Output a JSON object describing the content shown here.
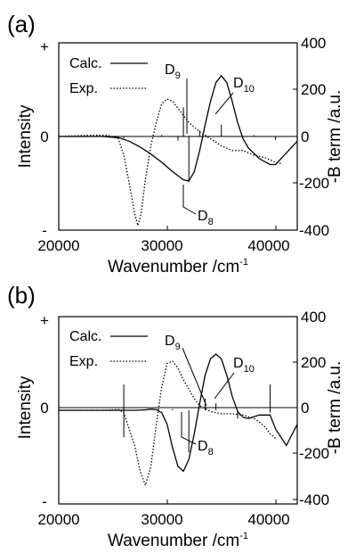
{
  "chart_data": [
    {
      "type": "line",
      "panel_label": "(a)",
      "xlabel": "Wavenumber /cm",
      "xlabel_sup": "-1",
      "ylabel_left": "Intensity",
      "ylabel_right": "-B term /a.u.",
      "left_ticks": [
        "+",
        "0",
        "-"
      ],
      "xlim": [
        20000,
        42000
      ],
      "x_ticks": [
        20000,
        30000,
        40000
      ],
      "right_ylim": [
        -400,
        400
      ],
      "right_ticks": [
        400,
        200,
        0,
        -200,
        -400
      ],
      "legend_position": "top-left",
      "series": [
        {
          "name": "Calc.",
          "style": "solid",
          "x": [
            20000,
            24000,
            25500,
            26500,
            27500,
            28500,
            29500,
            30500,
            31500,
            32000,
            32500,
            33000,
            33500,
            34000,
            34500,
            35000,
            35500,
            36000,
            36500,
            37000,
            37500,
            38500,
            39500,
            40000,
            41000,
            42000
          ],
          "y": [
            0,
            0,
            -5,
            -20,
            -45,
            -75,
            -110,
            -150,
            -185,
            -190,
            -150,
            -60,
            50,
            150,
            230,
            260,
            230,
            150,
            60,
            -10,
            -50,
            -95,
            -120,
            -120,
            -70,
            -20
          ]
        },
        {
          "name": "Exp.",
          "style": "dotted",
          "x": [
            20000,
            23000,
            24500,
            25500,
            26000,
            26500,
            27000,
            27300,
            27600,
            28000,
            28500,
            29000,
            29500,
            30000,
            30500,
            31000,
            31500,
            32000,
            33000,
            34000,
            35000,
            36000,
            37000,
            38000,
            39000,
            40000,
            40500
          ],
          "y": [
            0,
            5,
            5,
            -10,
            -80,
            -200,
            -330,
            -380,
            -330,
            -180,
            -40,
            60,
            140,
            160,
            150,
            120,
            90,
            60,
            20,
            -10,
            -40,
            -60,
            -60,
            -80,
            -90,
            -110,
            -115
          ]
        }
      ],
      "sticks": [
        {
          "x": 26000,
          "y": -8
        },
        {
          "x": 29500,
          "y": 6
        },
        {
          "x": 31000,
          "y": -18
        },
        {
          "x": 31500,
          "y": 125
        },
        {
          "x": 32000,
          "y": -195
        },
        {
          "x": 33000,
          "y": 25
        },
        {
          "x": 35000,
          "y": 50
        },
        {
          "x": 38000,
          "y": 6
        },
        {
          "x": 40000,
          "y": -15
        }
      ],
      "annotations": [
        {
          "label": "D",
          "sub": "9"
        },
        {
          "label": "D",
          "sub": "10"
        },
        {
          "label": "D",
          "sub": "8"
        }
      ]
    },
    {
      "type": "line",
      "panel_label": "(b)",
      "xlabel": "Wavenumber /cm",
      "xlabel_sup": "-1",
      "ylabel_left": "Intensity",
      "ylabel_right": "-B term /a.u.",
      "left_ticks": [
        "+",
        "0",
        "-"
      ],
      "xlim": [
        20000,
        42000
      ],
      "x_ticks": [
        20000,
        30000,
        40000
      ],
      "right_ylim": [
        -400,
        400
      ],
      "right_ticks": [
        400,
        200,
        0,
        -200,
        -400
      ],
      "legend_position": "top-left",
      "series": [
        {
          "name": "Calc.",
          "style": "solid",
          "x": [
            20000,
            24000,
            26000,
            27000,
            28000,
            28500,
            29000,
            29500,
            30000,
            30500,
            31000,
            31500,
            32000,
            32500,
            33000,
            33500,
            34000,
            34500,
            35000,
            35500,
            36000,
            36500,
            37000,
            37500,
            38500,
            39500,
            40000,
            41000,
            42000
          ],
          "y": [
            0,
            0,
            0,
            0,
            2,
            5,
            3,
            -10,
            -60,
            -160,
            -240,
            -260,
            -210,
            -100,
            30,
            150,
            220,
            240,
            220,
            150,
            60,
            -5,
            -30,
            -35,
            -20,
            -20,
            -80,
            -150,
            -60
          ]
        },
        {
          "name": "Exp.",
          "style": "dotted",
          "x": [
            20000,
            24000,
            25500,
            26000,
            26500,
            27000,
            27500,
            28000,
            28500,
            29000,
            29500,
            30000,
            30500,
            31000,
            31500,
            32000,
            32500,
            33000,
            34000,
            35000,
            36000,
            37000,
            38000,
            38500,
            39000,
            39500,
            40000
          ],
          "y": [
            0,
            0,
            3,
            -10,
            -80,
            -150,
            -260,
            -320,
            -240,
            -60,
            100,
            200,
            210,
            180,
            130,
            90,
            50,
            20,
            -5,
            -15,
            -15,
            -20,
            -35,
            -50,
            -70,
            -100,
            -120
          ]
        }
      ],
      "sticks": [
        {
          "x": 26000,
          "y": 110
        },
        {
          "x": 26000,
          "y": -115
        },
        {
          "x": 30500,
          "y": 5
        },
        {
          "x": 32000,
          "y": -180
        },
        {
          "x": 33500,
          "y": 50
        },
        {
          "x": 34500,
          "y": 30
        },
        {
          "x": 36500,
          "y": -35
        },
        {
          "x": 39500,
          "y": 110
        },
        {
          "x": 39500,
          "y": -10
        }
      ],
      "annotations": [
        {
          "label": "D",
          "sub": "9"
        },
        {
          "label": "D",
          "sub": "10"
        },
        {
          "label": "D",
          "sub": "8"
        }
      ]
    }
  ]
}
